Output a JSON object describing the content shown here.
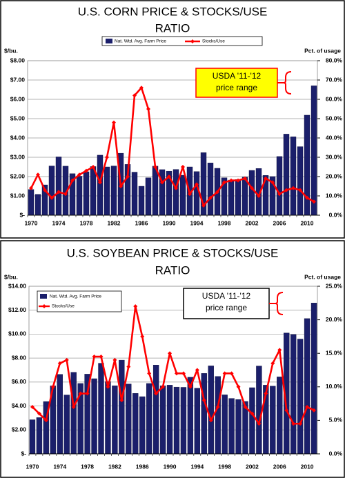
{
  "chart_data": [
    {
      "type": "bar_line",
      "title": [
        "U.S. CORN PRICE & STOCKS/USE",
        "RATIO"
      ],
      "y_label": "$/bu.",
      "y2_label": "Pct. of usage",
      "annotation": [
        "USDA '11-'12",
        "price range"
      ],
      "legend": "top",
      "categories": [
        "1970",
        null,
        null,
        null,
        "1974",
        null,
        null,
        null,
        "1978",
        null,
        null,
        null,
        "1982",
        null,
        null,
        null,
        "1986",
        null,
        null,
        null,
        "1990",
        null,
        null,
        null,
        "1994",
        null,
        null,
        null,
        "1998",
        null,
        null,
        null,
        "2002",
        null,
        null,
        null,
        "2006",
        null,
        null,
        null,
        "2010",
        null
      ],
      "series": [
        {
          "name": "Nat. Wtd. Avg. Farm Price",
          "color": "#1b1f6b",
          "axis": "y",
          "values": [
            1.33,
            1.08,
            1.57,
            2.55,
            3.02,
            2.54,
            2.15,
            2.02,
            2.25,
            2.52,
            3.11,
            2.5,
            2.55,
            3.21,
            2.63,
            2.23,
            1.5,
            1.94,
            2.54,
            2.36,
            2.28,
            2.37,
            2.07,
            2.5,
            2.26,
            3.24,
            2.71,
            2.43,
            1.94,
            1.82,
            1.85,
            1.97,
            2.32,
            2.42,
            2.06,
            2.0,
            3.04,
            4.2,
            4.06,
            3.55,
            5.18,
            6.7
          ]
        },
        {
          "name": "Stocks/Use",
          "color": "#ff0000",
          "axis": "y2",
          "values": [
            14,
            21,
            13,
            9,
            12,
            11,
            18,
            21,
            23,
            25,
            17,
            30,
            48,
            15,
            20,
            62,
            66,
            55,
            25,
            17,
            20,
            14,
            25,
            11,
            16,
            5,
            9,
            12,
            17,
            18,
            18,
            19,
            14,
            10,
            19,
            17,
            11,
            13,
            14,
            13,
            9,
            7
          ]
        }
      ],
      "ylim": [
        0,
        8
      ],
      "yticks": [
        {
          "value": 0,
          "label": "$-"
        },
        {
          "value": 1,
          "label": "$1.00"
        },
        {
          "value": 2,
          "label": "$2.00"
        },
        {
          "value": 3,
          "label": "$3.00"
        },
        {
          "value": 4,
          "label": "$4.00"
        },
        {
          "value": 5,
          "label": "$5.00"
        },
        {
          "value": 6,
          "label": "$6.00"
        },
        {
          "value": 7,
          "label": "$7.00"
        },
        {
          "value": 8,
          "label": "$8.00"
        }
      ],
      "y2lim": [
        0,
        80
      ],
      "y2ticks": [
        {
          "value": 0,
          "label": "0.0%"
        },
        {
          "value": 10,
          "label": "10.0%"
        },
        {
          "value": 20,
          "label": "20.0%"
        },
        {
          "value": 30,
          "label": "30.0%"
        },
        {
          "value": 40,
          "label": "40.0%"
        },
        {
          "value": 50,
          "label": "50.0%"
        },
        {
          "value": 60,
          "label": "60.0%"
        },
        {
          "value": 70,
          "label": "70.0%"
        },
        {
          "value": 80,
          "label": "80.0%"
        }
      ],
      "grid": true
    },
    {
      "type": "bar_line",
      "title": [
        "U.S. SOYBEAN PRICE & STOCKS/USE",
        "RATIO"
      ],
      "y_label": "$/bu.",
      "y2_label": "Pct. of usage",
      "annotation": [
        "USDA '11-'12",
        "price range"
      ],
      "legend": "upper left",
      "categories": [
        "1970",
        null,
        null,
        null,
        "1974",
        null,
        null,
        null,
        "1978",
        null,
        null,
        null,
        "1982",
        null,
        null,
        null,
        "1986",
        null,
        null,
        null,
        "1990",
        null,
        null,
        null,
        "1994",
        null,
        null,
        null,
        "1998",
        null,
        null,
        null,
        "2002",
        null,
        null,
        null,
        "2006",
        null,
        null,
        null,
        "2010",
        null
      ],
      "series": [
        {
          "name": "Nat. Wtd. Avg. Farm Price",
          "color": "#1b1f6b",
          "axis": "y",
          "values": [
            2.85,
            3.03,
            4.37,
            5.68,
            6.64,
            4.92,
            6.81,
            5.88,
            6.66,
            6.28,
            7.57,
            6.04,
            5.69,
            7.83,
            5.84,
            5.05,
            4.78,
            5.88,
            7.42,
            5.69,
            5.74,
            5.58,
            5.56,
            6.4,
            5.48,
            6.72,
            7.35,
            6.47,
            4.93,
            4.63,
            4.54,
            4.38,
            5.53,
            7.34,
            5.74,
            5.66,
            6.43,
            10.1,
            9.97,
            9.59,
            11.3,
            12.6
          ]
        },
        {
          "name": "Stocks/Use",
          "color": "#ff0000",
          "axis": "y2",
          "values": [
            7,
            6,
            5,
            10,
            13.5,
            14,
            7,
            9,
            9,
            14.5,
            14.5,
            10,
            14,
            8,
            13,
            22,
            17.5,
            12,
            9,
            10,
            15,
            12,
            12,
            10,
            12.5,
            8,
            5,
            7,
            12,
            12,
            10,
            7,
            6,
            4.5,
            9,
            13.5,
            15.5,
            6.5,
            4.5,
            4.5,
            7,
            6.5
          ]
        }
      ],
      "ylim": [
        0,
        14
      ],
      "yticks": [
        {
          "value": 0,
          "label": "$-"
        },
        {
          "value": 2,
          "label": "$2.00"
        },
        {
          "value": 4,
          "label": "$4.00"
        },
        {
          "value": 6,
          "label": "$6.00"
        },
        {
          "value": 8,
          "label": "$8.00"
        },
        {
          "value": 10,
          "label": "$10.00"
        },
        {
          "value": 12,
          "label": "$12.00"
        },
        {
          "value": 14,
          "label": "$14.00"
        }
      ],
      "y2lim": [
        0,
        25
      ],
      "y2ticks": [
        {
          "value": 0,
          "label": "0.0%"
        },
        {
          "value": 5,
          "label": "5.0%"
        },
        {
          "value": 10,
          "label": "10.0%"
        },
        {
          "value": 15,
          "label": "15.0%"
        },
        {
          "value": 20,
          "label": "20.0%"
        },
        {
          "value": 25,
          "label": "25.0%"
        }
      ],
      "grid": true
    }
  ]
}
